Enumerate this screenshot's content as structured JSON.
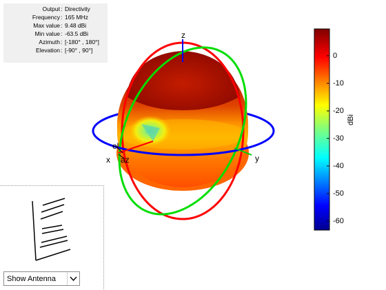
{
  "info": {
    "rows": [
      {
        "key": "Output",
        "value": "Directivity"
      },
      {
        "key": "Frequency",
        "value": "165 MHz"
      },
      {
        "key": "Max value",
        "value": "9.48 dBi"
      },
      {
        "key": "Min value",
        "value": "-63.5 dBi"
      },
      {
        "key": "Azimuth",
        "value": "[-180° , 180°]"
      },
      {
        "key": "Elevation",
        "value": "[-90° , 90°]"
      }
    ],
    "separator": ":"
  },
  "plot": {
    "axis_labels": {
      "z": "z",
      "y": "y",
      "x": "x",
      "el": "el",
      "az": "az"
    },
    "colors": {
      "azimuth_ring": "#0000ff",
      "elevation_ring_xz": "#ff0000",
      "elevation_ring_yz": "#00ff00",
      "pattern_top": "#b81c00",
      "pattern_side": "#ff7000"
    }
  },
  "colorbar": {
    "ticks": [
      "0",
      "-10",
      "-20",
      "-30",
      "-40",
      "-50",
      "-60"
    ],
    "unit": "dBi",
    "colormap": "jet"
  },
  "antenna_view": {
    "select_value": "Show Antenna",
    "dropdown_icon": "chevron-down-icon"
  }
}
